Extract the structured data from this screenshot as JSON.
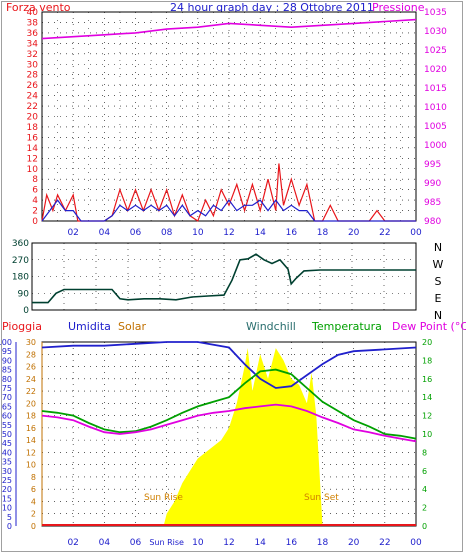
{
  "header": {
    "left": "Forza vento",
    "center": "24 hour graph day : 28 Ottobre 2011",
    "right": "Pressione"
  },
  "colors": {
    "red": "#e8161b",
    "blue": "#2020cc",
    "magenta": "#e000e0",
    "darkgreen": "#004030",
    "green": "#00a000",
    "yellow": "#ffff00",
    "orange": "#d08000",
    "grid": "#000000"
  },
  "charts": [
    {
      "id": "wind-pressure",
      "type": "line",
      "y_left": {
        "min": 0,
        "max": 40,
        "ticks": [
          "0",
          "2",
          "4",
          "6",
          "8",
          "10",
          "12",
          "14",
          "16",
          "18",
          "20",
          "22",
          "24",
          "26",
          "28",
          "30",
          "32",
          "34",
          "36",
          "38",
          "40"
        ],
        "color": "#e8161b"
      },
      "y_right": {
        "min": 980,
        "max": 1035,
        "ticks": [
          "980",
          "985",
          "990",
          "995",
          "1000",
          "1005",
          "1010",
          "1015",
          "1020",
          "1025",
          "1030",
          "1035"
        ],
        "color": "#e000e0"
      },
      "x_ticks": [
        "02",
        "04",
        "06",
        "08",
        "10",
        "12",
        "14",
        "16",
        "18",
        "20",
        "22",
        "00"
      ],
      "series": [
        {
          "kind": "gust",
          "color": "#e8161b",
          "points": [
            [
              0,
              0
            ],
            [
              0.3,
              5
            ],
            [
              0.7,
              2
            ],
            [
              1,
              5
            ],
            [
              1.5,
              2
            ],
            [
              2,
              5
            ],
            [
              2.3,
              0
            ],
            [
              3,
              0
            ],
            [
              4,
              0
            ],
            [
              4.5,
              1
            ],
            [
              5,
              6
            ],
            [
              5.5,
              2
            ],
            [
              6,
              6
            ],
            [
              6.5,
              2
            ],
            [
              7,
              6
            ],
            [
              7.5,
              2
            ],
            [
              8,
              6
            ],
            [
              8.5,
              1
            ],
            [
              9,
              5
            ],
            [
              9.5,
              1
            ],
            [
              10,
              0
            ],
            [
              10.5,
              4
            ],
            [
              11,
              1
            ],
            [
              11.5,
              6
            ],
            [
              12,
              3
            ],
            [
              12.5,
              7
            ],
            [
              13,
              2
            ],
            [
              13.5,
              7
            ],
            [
              14,
              2
            ],
            [
              14.5,
              8
            ],
            [
              15,
              2
            ],
            [
              15.2,
              11
            ],
            [
              15.5,
              3
            ],
            [
              16,
              8
            ],
            [
              16.5,
              3
            ],
            [
              17,
              7
            ],
            [
              17.5,
              0
            ],
            [
              18,
              0
            ],
            [
              18.5,
              3
            ],
            [
              19,
              0
            ],
            [
              21,
              0
            ],
            [
              21.5,
              2
            ],
            [
              22,
              0
            ],
            [
              24,
              0
            ]
          ]
        },
        {
          "kind": "avg",
          "color": "#2020cc",
          "points": [
            [
              0,
              0
            ],
            [
              0.5,
              2
            ],
            [
              1,
              4
            ],
            [
              1.5,
              2
            ],
            [
              2,
              2
            ],
            [
              2.5,
              0
            ],
            [
              4,
              0
            ],
            [
              4.5,
              1
            ],
            [
              5,
              3
            ],
            [
              5.5,
              2
            ],
            [
              6,
              3
            ],
            [
              6.5,
              2
            ],
            [
              7,
              3
            ],
            [
              7.5,
              2
            ],
            [
              8,
              3
            ],
            [
              8.5,
              1
            ],
            [
              9,
              3
            ],
            [
              9.5,
              1
            ],
            [
              10,
              2
            ],
            [
              10.5,
              1
            ],
            [
              11,
              3
            ],
            [
              11.5,
              2
            ],
            [
              12,
              4
            ],
            [
              12.5,
              2
            ],
            [
              13,
              3
            ],
            [
              13.5,
              3
            ],
            [
              14,
              4
            ],
            [
              14.5,
              2
            ],
            [
              15,
              4
            ],
            [
              15.5,
              2
            ],
            [
              16,
              3
            ],
            [
              16.5,
              2
            ],
            [
              17,
              2
            ],
            [
              17.5,
              0
            ],
            [
              24,
              0
            ]
          ]
        },
        {
          "kind": "pressure",
          "axis": "right",
          "color": "#e000e0",
          "points": [
            [
              0,
              1028
            ],
            [
              2,
              1028.5
            ],
            [
              4,
              1029
            ],
            [
              6,
              1029.5
            ],
            [
              8,
              1030.5
            ],
            [
              10,
              1031
            ],
            [
              12,
              1032
            ],
            [
              14,
              1031.5
            ],
            [
              16,
              1031
            ],
            [
              18,
              1031.5
            ],
            [
              20,
              1032
            ],
            [
              22,
              1032.5
            ],
            [
              24,
              1033
            ]
          ]
        }
      ]
    },
    {
      "id": "wind-direction",
      "type": "line",
      "y_left": {
        "min": 0,
        "max": 360,
        "ticks": [
          "0",
          "90",
          "180",
          "270",
          "360"
        ]
      },
      "y_right_labels": [
        "N",
        "W",
        "S",
        "E",
        "N"
      ],
      "series": [
        {
          "kind": "direction",
          "color": "#004030",
          "points": [
            [
              0,
              40
            ],
            [
              0.5,
              40
            ],
            [
              1,
              40
            ],
            [
              1.5,
              90
            ],
            [
              2,
              110
            ],
            [
              3,
              110
            ],
            [
              4,
              110
            ],
            [
              5,
              110
            ],
            [
              5.5,
              60
            ],
            [
              6,
              55
            ],
            [
              7,
              60
            ],
            [
              8,
              60
            ],
            [
              9,
              55
            ],
            [
              10,
              70
            ],
            [
              11,
              75
            ],
            [
              12,
              80
            ],
            [
              12.5,
              160
            ],
            [
              13,
              270
            ],
            [
              13.5,
              275
            ],
            [
              14,
              300
            ],
            [
              14.5,
              270
            ],
            [
              15,
              250
            ],
            [
              15.5,
              270
            ],
            [
              16,
              220
            ],
            [
              16.2,
              140
            ],
            [
              16.5,
              170
            ],
            [
              17,
              210
            ],
            [
              18,
              215
            ],
            [
              19,
              215
            ],
            [
              20,
              215
            ],
            [
              22,
              215
            ],
            [
              24,
              215
            ]
          ]
        }
      ]
    },
    {
      "id": "temp-humidity",
      "type": "area",
      "labels": {
        "pioggia": "Pioggia",
        "umidita": "Umidita",
        "solar": "Solar",
        "windchill": "Windchill",
        "temperatura": "Temperatura",
        "dewpoint": "Dew Point (°C)"
      },
      "y_left1": {
        "min": 0,
        "max": 100,
        "ticks": [
          "0",
          "5",
          "10",
          "15",
          "20",
          "25",
          "30",
          "35",
          "40",
          "45",
          "50",
          "55",
          "60",
          "65",
          "70",
          "75",
          "80",
          "85",
          "90",
          "95",
          "100"
        ]
      },
      "y_left2": {
        "min": 0,
        "max": 30,
        "ticks": [
          "0",
          "2",
          "4",
          "6",
          "8",
          "10",
          "12",
          "14",
          "16",
          "18",
          "20",
          "22",
          "24",
          "26",
          "28",
          "30"
        ]
      },
      "y_right": {
        "min": 0,
        "max": 20,
        "ticks": [
          "0",
          "2",
          "4",
          "6",
          "8",
          "10",
          "12",
          "14",
          "16",
          "18",
          "20"
        ]
      },
      "x_ticks": [
        "02",
        "04",
        "06",
        "Sun Rise",
        "10",
        "12",
        "14",
        "16",
        "18",
        "20",
        "22",
        "00"
      ],
      "annotations": {
        "sunrise": "Sun Rise",
        "sunset": "Sun Set"
      },
      "series": [
        {
          "kind": "humidity",
          "color": "#2020cc",
          "points": [
            [
              0,
              97
            ],
            [
              2,
              98
            ],
            [
              4,
              98
            ],
            [
              6,
              99
            ],
            [
              8,
              100
            ],
            [
              10,
              100
            ],
            [
              12,
              97
            ],
            [
              13,
              88
            ],
            [
              14,
              80
            ],
            [
              15,
              75
            ],
            [
              16,
              76
            ],
            [
              17,
              82
            ],
            [
              18,
              88
            ],
            [
              19,
              93
            ],
            [
              20,
              95
            ],
            [
              22,
              96
            ],
            [
              24,
              97
            ]
          ]
        },
        {
          "kind": "temperature",
          "color": "#00a000",
          "points": [
            [
              0,
              12.5
            ],
            [
              1,
              12.3
            ],
            [
              2,
              12
            ],
            [
              3,
              11.2
            ],
            [
              4,
              10.5
            ],
            [
              5,
              10.2
            ],
            [
              6,
              10.3
            ],
            [
              7,
              10.8
            ],
            [
              8,
              11.5
            ],
            [
              9,
              12.3
            ],
            [
              10,
              13
            ],
            [
              11,
              13.5
            ],
            [
              12,
              14
            ],
            [
              13,
              15.5
            ],
            [
              14,
              16.8
            ],
            [
              15,
              17
            ],
            [
              16,
              16.5
            ],
            [
              17,
              15
            ],
            [
              18,
              13.5
            ],
            [
              19,
              12.5
            ],
            [
              20,
              11.5
            ],
            [
              21,
              10.8
            ],
            [
              22,
              10
            ],
            [
              23,
              9.8
            ],
            [
              24,
              9.5
            ]
          ]
        },
        {
          "kind": "dewpoint",
          "color": "#e000e0",
          "points": [
            [
              0,
              12
            ],
            [
              1,
              11.8
            ],
            [
              2,
              11.5
            ],
            [
              3,
              10.8
            ],
            [
              4,
              10.2
            ],
            [
              5,
              10
            ],
            [
              6,
              10.2
            ],
            [
              7,
              10.5
            ],
            [
              8,
              11
            ],
            [
              9,
              11.5
            ],
            [
              10,
              12
            ],
            [
              11,
              12.3
            ],
            [
              12,
              12.5
            ],
            [
              13,
              12.8
            ],
            [
              14,
              13
            ],
            [
              15,
              13.2
            ],
            [
              16,
              13
            ],
            [
              17,
              12.5
            ],
            [
              18,
              11.8
            ],
            [
              19,
              11.2
            ],
            [
              20,
              10.5
            ],
            [
              21,
              10.2
            ],
            [
              22,
              9.8
            ],
            [
              23,
              9.5
            ],
            [
              24,
              9.2
            ]
          ]
        },
        {
          "kind": "solar",
          "color": "#ffff00",
          "points": [
            [
              7.8,
              0
            ],
            [
              8,
              2
            ],
            [
              8.5,
              4
            ],
            [
              9,
              7
            ],
            [
              9.5,
              9
            ],
            [
              10,
              11
            ],
            [
              10.5,
              12
            ],
            [
              11,
              13
            ],
            [
              11.5,
              14
            ],
            [
              12,
              16
            ],
            [
              12.5,
              20
            ],
            [
              13,
              26
            ],
            [
              13.2,
              29
            ],
            [
              13.5,
              22
            ],
            [
              14,
              28
            ],
            [
              14.5,
              24
            ],
            [
              15,
              29
            ],
            [
              15.5,
              27
            ],
            [
              16,
              24
            ],
            [
              16.5,
              23
            ],
            [
              17,
              20
            ],
            [
              17.3,
              25
            ],
            [
              17.6,
              18
            ],
            [
              18,
              0
            ]
          ]
        }
      ]
    }
  ]
}
